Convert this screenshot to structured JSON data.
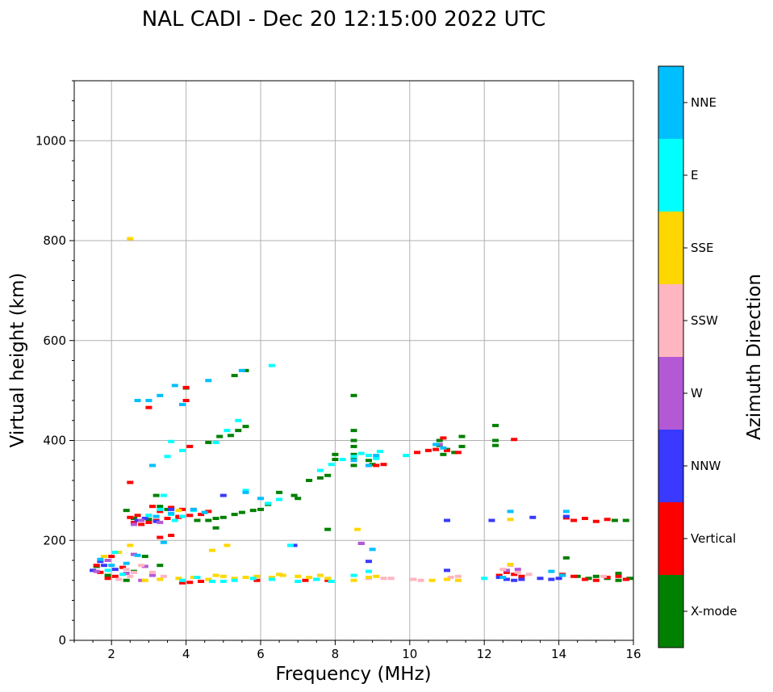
{
  "chart_data": {
    "type": "scatter",
    "title": "NAL CADI - Dec 20 12:15:00 2022 UTC",
    "xlabel": "Frequency (MHz)",
    "ylabel": "Virtual height (km)",
    "xlim": [
      1,
      16
    ],
    "ylim": [
      0,
      1120
    ],
    "xticks": [
      2,
      4,
      6,
      8,
      10,
      12,
      14,
      16
    ],
    "yticks": [
      0,
      200,
      400,
      600,
      800,
      1000
    ],
    "grid": true,
    "colorbar": {
      "label": "Azimuth Direction",
      "categories": [
        "X-mode",
        "Vertical",
        "NNW",
        "W",
        "SSW",
        "SSE",
        "E",
        "NNE"
      ],
      "colors": [
        "#008000",
        "#ff0000",
        "#3939ff",
        "#b459d6",
        "#ffb6c1",
        "#ffd700",
        "#00ffff",
        "#00bfff"
      ]
    },
    "series": [
      {
        "name": "X-mode",
        "points": [
          [
            7.3,
            320
          ],
          [
            7.6,
            325
          ],
          [
            7.8,
            330
          ],
          [
            6.9,
            290
          ],
          [
            7.0,
            284
          ],
          [
            6.5,
            296
          ],
          [
            6.2,
            272
          ],
          [
            6.0,
            262
          ],
          [
            5.8,
            260
          ],
          [
            5.5,
            256
          ],
          [
            5.3,
            252
          ],
          [
            5.0,
            246
          ],
          [
            4.8,
            244
          ],
          [
            4.6,
            240
          ],
          [
            4.3,
            240
          ],
          [
            5.2,
            410
          ],
          [
            5.4,
            420
          ],
          [
            5.6,
            428
          ],
          [
            4.9,
            408
          ],
          [
            4.6,
            396
          ],
          [
            5.3,
            530
          ],
          [
            5.6,
            540
          ],
          [
            4.0,
            505
          ],
          [
            8.5,
            420
          ],
          [
            8.5,
            400
          ],
          [
            8.5,
            388
          ],
          [
            8.5,
            372
          ],
          [
            8.5,
            362
          ],
          [
            8.5,
            350
          ],
          [
            8.5,
            490
          ],
          [
            8.9,
            360
          ],
          [
            9.0,
            352
          ],
          [
            8.0,
            362
          ],
          [
            8.0,
            372
          ],
          [
            7.8,
            222
          ],
          [
            4.8,
            225
          ],
          [
            3.5,
            262
          ],
          [
            3.3,
            268
          ],
          [
            3.0,
            242
          ],
          [
            10.8,
            400
          ],
          [
            10.8,
            390
          ],
          [
            11.0,
            382
          ],
          [
            11.2,
            376
          ],
          [
            11.4,
            388
          ],
          [
            11.4,
            408
          ],
          [
            10.9,
            372
          ],
          [
            12.3,
            400
          ],
          [
            12.3,
            390
          ],
          [
            12.3,
            430
          ],
          [
            14.2,
            165
          ],
          [
            14.5,
            128
          ],
          [
            14.8,
            124
          ],
          [
            15.0,
            128
          ],
          [
            15.3,
            124
          ],
          [
            15.6,
            120
          ],
          [
            15.9,
            124
          ],
          [
            15.5,
            240
          ],
          [
            15.8,
            240
          ],
          [
            15.6,
            134
          ],
          [
            2.4,
            260
          ],
          [
            2.6,
            244
          ],
          [
            3.2,
            290
          ],
          [
            2.9,
            168
          ],
          [
            3.3,
            150
          ],
          [
            2.6,
            138
          ],
          [
            1.6,
            148
          ],
          [
            1.9,
            130
          ],
          [
            2.4,
            120
          ]
        ]
      },
      {
        "name": "Vertical",
        "points": [
          [
            2.6,
            236
          ],
          [
            2.8,
            232
          ],
          [
            3.0,
            236
          ],
          [
            3.2,
            240
          ],
          [
            3.5,
            244
          ],
          [
            3.8,
            246
          ],
          [
            4.1,
            250
          ],
          [
            4.4,
            252
          ],
          [
            4.6,
            258
          ],
          [
            4.2,
            262
          ],
          [
            3.9,
            262
          ],
          [
            3.6,
            266
          ],
          [
            3.3,
            258
          ],
          [
            3.1,
            268
          ],
          [
            2.5,
            246
          ],
          [
            2.7,
            250
          ],
          [
            3.0,
            466
          ],
          [
            4.0,
            480
          ],
          [
            4.0,
            506
          ],
          [
            3.3,
            206
          ],
          [
            3.6,
            210
          ],
          [
            3.8,
            248
          ],
          [
            3.9,
            115
          ],
          [
            4.1,
            116
          ],
          [
            4.4,
            118
          ],
          [
            5.9,
            120
          ],
          [
            7.2,
            120
          ],
          [
            7.5,
            122
          ],
          [
            7.8,
            120
          ],
          [
            8.9,
            350
          ],
          [
            9.1,
            350
          ],
          [
            9.3,
            352
          ],
          [
            10.2,
            376
          ],
          [
            10.5,
            380
          ],
          [
            10.7,
            382
          ],
          [
            11.0,
            380
          ],
          [
            11.3,
            376
          ],
          [
            10.9,
            405
          ],
          [
            12.8,
            402
          ],
          [
            12.4,
            130
          ],
          [
            12.6,
            136
          ],
          [
            12.8,
            132
          ],
          [
            13.0,
            128
          ],
          [
            14.2,
            245
          ],
          [
            14.4,
            240
          ],
          [
            14.7,
            244
          ],
          [
            15.0,
            238
          ],
          [
            15.3,
            242
          ],
          [
            14.1,
            132
          ],
          [
            14.4,
            128
          ],
          [
            14.7,
            122
          ],
          [
            15.0,
            120
          ],
          [
            15.3,
            126
          ],
          [
            15.6,
            128
          ],
          [
            15.8,
            122
          ],
          [
            1.6,
            150
          ],
          [
            1.7,
            136
          ],
          [
            1.9,
            124
          ],
          [
            2.0,
            168
          ],
          [
            2.3,
            146
          ],
          [
            2.1,
            128
          ],
          [
            2.5,
            316
          ],
          [
            4.1,
            388
          ]
        ]
      },
      {
        "name": "NNW",
        "points": [
          [
            2.7,
            240
          ],
          [
            2.9,
            244
          ],
          [
            3.2,
            238
          ],
          [
            3.6,
            262
          ],
          [
            5.0,
            290
          ],
          [
            6.9,
            190
          ],
          [
            8.7,
            194
          ],
          [
            8.9,
            158
          ],
          [
            11.0,
            240
          ],
          [
            12.2,
            240
          ],
          [
            12.4,
            126
          ],
          [
            12.6,
            122
          ],
          [
            12.8,
            120
          ],
          [
            13.0,
            122
          ],
          [
            13.3,
            246
          ],
          [
            13.5,
            124
          ],
          [
            13.8,
            122
          ],
          [
            14.0,
            124
          ],
          [
            14.2,
            248
          ],
          [
            11.0,
            140
          ],
          [
            1.5,
            140
          ],
          [
            1.8,
            150
          ],
          [
            2.1,
            142
          ],
          [
            1.7,
            158
          ]
        ]
      },
      {
        "name": "W",
        "points": [
          [
            2.6,
            232
          ],
          [
            2.8,
            240
          ],
          [
            3.0,
            250
          ],
          [
            3.3,
            236
          ],
          [
            2.9,
            148
          ],
          [
            3.1,
            130
          ],
          [
            2.6,
            172
          ],
          [
            1.6,
            138
          ],
          [
            1.9,
            160
          ],
          [
            8.7,
            194
          ],
          [
            10.8,
            392
          ],
          [
            12.6,
            140
          ],
          [
            12.9,
            142
          ],
          [
            2.4,
            134
          ],
          [
            2.8,
            120
          ]
        ]
      },
      {
        "name": "SSW",
        "points": [
          [
            2.4,
            142
          ],
          [
            2.6,
            136
          ],
          [
            2.8,
            150
          ],
          [
            3.1,
            136
          ],
          [
            3.4,
            128
          ],
          [
            2.2,
            122
          ],
          [
            2.5,
            128
          ],
          [
            9.3,
            124
          ],
          [
            9.5,
            124
          ],
          [
            10.1,
            122
          ],
          [
            10.3,
            120
          ],
          [
            11.1,
            126
          ],
          [
            11.3,
            128
          ],
          [
            12.7,
            150
          ],
          [
            12.5,
            142
          ],
          [
            12.9,
            136
          ],
          [
            13.2,
            132
          ],
          [
            15.2,
            128
          ],
          [
            8.9,
            124
          ]
        ]
      },
      {
        "name": "SSE",
        "points": [
          [
            2.5,
            804
          ],
          [
            2.9,
            120
          ],
          [
            3.3,
            122
          ],
          [
            3.8,
            124
          ],
          [
            4.2,
            126
          ],
          [
            4.6,
            122
          ],
          [
            4.8,
            130
          ],
          [
            5.0,
            128
          ],
          [
            5.3,
            124
          ],
          [
            5.6,
            126
          ],
          [
            5.9,
            128
          ],
          [
            6.3,
            126
          ],
          [
            6.6,
            130
          ],
          [
            7.0,
            128
          ],
          [
            7.3,
            126
          ],
          [
            7.6,
            130
          ],
          [
            7.8,
            124
          ],
          [
            8.5,
            120
          ],
          [
            8.9,
            126
          ],
          [
            9.1,
            128
          ],
          [
            10.6,
            120
          ],
          [
            11.0,
            122
          ],
          [
            11.3,
            120
          ],
          [
            12.7,
            152
          ],
          [
            12.7,
            242
          ],
          [
            4.7,
            180
          ],
          [
            5.1,
            190
          ],
          [
            6.5,
            132
          ],
          [
            8.6,
            222
          ],
          [
            2.2,
            176
          ],
          [
            2.5,
            190
          ],
          [
            1.8,
            168
          ],
          [
            3.8,
            260
          ]
        ]
      },
      {
        "name": "E",
        "points": [
          [
            3.0,
            250
          ],
          [
            3.3,
            262
          ],
          [
            3.6,
            252
          ],
          [
            3.9,
            248
          ],
          [
            4.2,
            260
          ],
          [
            5.4,
            440
          ],
          [
            5.1,
            420
          ],
          [
            4.8,
            396
          ],
          [
            3.6,
            398
          ],
          [
            3.5,
            368
          ],
          [
            3.9,
            380
          ],
          [
            6.2,
            274
          ],
          [
            6.5,
            282
          ],
          [
            6.8,
            190
          ],
          [
            7.6,
            340
          ],
          [
            7.9,
            352
          ],
          [
            8.2,
            362
          ],
          [
            8.5,
            368
          ],
          [
            8.7,
            374
          ],
          [
            8.9,
            370
          ],
          [
            9.1,
            364
          ],
          [
            9.2,
            378
          ],
          [
            9.9,
            370
          ],
          [
            6.3,
            550
          ],
          [
            5.6,
            300
          ],
          [
            3.9,
            120
          ],
          [
            4.3,
            126
          ],
          [
            4.7,
            118
          ],
          [
            5.0,
            118
          ],
          [
            5.3,
            120
          ],
          [
            5.8,
            124
          ],
          [
            6.3,
            122
          ],
          [
            7.0,
            118
          ],
          [
            7.5,
            122
          ],
          [
            7.9,
            118
          ],
          [
            8.5,
            130
          ],
          [
            8.9,
            138
          ],
          [
            12.0,
            124
          ],
          [
            2.1,
            176
          ],
          [
            2.3,
            132
          ],
          [
            3.4,
            290
          ],
          [
            3.7,
            240
          ],
          [
            1.9,
            140
          ]
        ]
      },
      {
        "name": "NNE",
        "points": [
          [
            3.2,
            248
          ],
          [
            3.6,
            254
          ],
          [
            3.9,
            472
          ],
          [
            3.7,
            510
          ],
          [
            3.3,
            490
          ],
          [
            3.0,
            480
          ],
          [
            4.6,
            520
          ],
          [
            5.6,
            296
          ],
          [
            6.0,
            284
          ],
          [
            8.5,
            360
          ],
          [
            8.9,
            350
          ],
          [
            9.1,
            370
          ],
          [
            9.0,
            182
          ],
          [
            10.7,
            392
          ],
          [
            10.9,
            385
          ],
          [
            12.7,
            258
          ],
          [
            14.2,
            258
          ],
          [
            12.5,
            126
          ],
          [
            13.8,
            138
          ],
          [
            14.1,
            130
          ],
          [
            1.7,
            162
          ],
          [
            2.0,
            150
          ],
          [
            2.4,
            154
          ],
          [
            2.7,
            170
          ],
          [
            3.4,
            196
          ],
          [
            3.1,
            350
          ],
          [
            4.2,
            262
          ],
          [
            4.5,
            256
          ],
          [
            5.5,
            540
          ],
          [
            2.7,
            480
          ]
        ]
      }
    ]
  }
}
